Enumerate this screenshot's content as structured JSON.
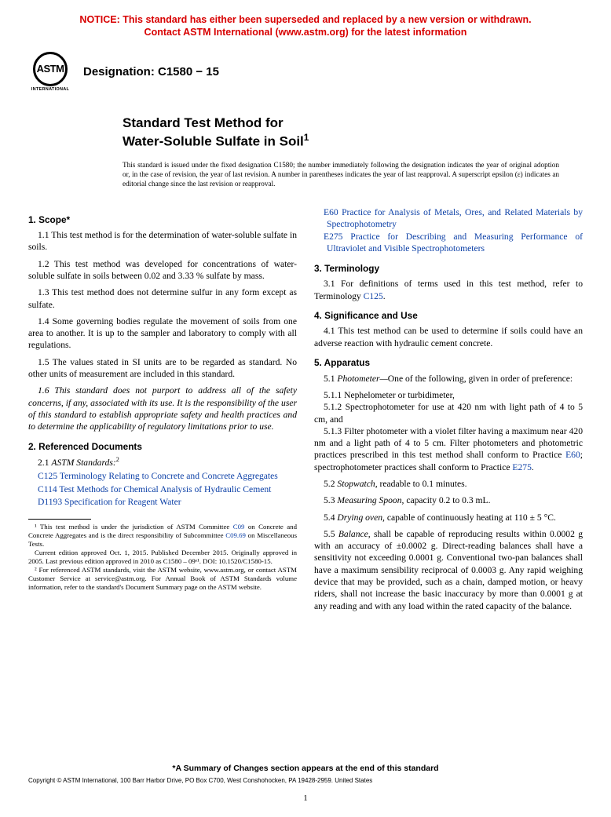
{
  "colors": {
    "notice": "#d80000",
    "link": "#0b3fa6",
    "text": "#000000",
    "background": "#ffffff"
  },
  "notice": {
    "line1": "NOTICE: This standard has either been superseded and replaced by a new version or withdrawn.",
    "line2": "Contact ASTM International (www.astm.org) for the latest information"
  },
  "logo": {
    "text": "ASTM",
    "subtext": "INTERNATIONAL"
  },
  "designation": "Designation: C1580 − 15",
  "title": {
    "lead": "Standard Test Method for",
    "main": "Water-Soluble Sulfate in Soil",
    "super": "1"
  },
  "issuance": "This standard is issued under the fixed designation C1580; the number immediately following the designation indicates the year of original adoption or, in the case of revision, the year of last revision. A number in parentheses indicates the year of last reapproval. A superscript epsilon (ε) indicates an editorial change since the last revision or reapproval.",
  "scope": {
    "heading": "1. Scope*",
    "p1": "1.1 This test method is for the determination of water-soluble sulfate in soils.",
    "p2": "1.2 This test method was developed for concentrations of water-soluble sulfate in soils between 0.02 and 3.33 % sulfate by mass.",
    "p3": "1.3 This test method does not determine sulfur in any form except as sulfate.",
    "p4": "1.4 Some governing bodies regulate the movement of soils from one area to another. It is up to the sampler and laboratory to comply with all regulations.",
    "p5": "1.5 The values stated in SI units are to be regarded as standard. No other units of measurement are included in this standard.",
    "p6": "1.6 This standard does not purport to address all of the safety concerns, if any, associated with its use. It is the responsibility of the user of this standard to establish appropriate safety and health practices and to determine the applicability of regulatory limitations prior to use."
  },
  "refs": {
    "heading": "2. Referenced Documents",
    "lead": "2.1 ",
    "lead_italic": "ASTM Standards:",
    "lead_sup": "2",
    "items": [
      {
        "code": "C125",
        "rest": " Terminology Relating to Concrete and Concrete Aggregates"
      },
      {
        "code": "C114",
        "rest": " Test Methods for Chemical Analysis of Hydraulic Cement"
      },
      {
        "code": "D1193",
        "rest": " Specification for Reagent Water"
      },
      {
        "code": "E60",
        "rest": " Practice for Analysis of Metals, Ores, and Related Materials by Spectrophotometry"
      },
      {
        "code": "E275",
        "rest": " Practice for Describing and Measuring Performance of Ultraviolet and Visible Spectrophotometers"
      }
    ]
  },
  "terminology": {
    "heading": "3. Terminology",
    "p1_a": "3.1 For definitions of terms used in this test method, refer to Terminology ",
    "p1_link": "C125",
    "p1_b": "."
  },
  "significance": {
    "heading": "4. Significance and Use",
    "p1": "4.1 This test method can be used to determine if soils could have an adverse reaction with hydraulic cement concrete."
  },
  "apparatus": {
    "heading": "5. Apparatus",
    "p51_a": "5.1 ",
    "p51_i": "Photometer—",
    "p51_b": "One of the following, given in order of preference:",
    "p511": "5.1.1 Nephelometer or turbidimeter,",
    "p512": "5.1.2 Spectrophotometer for use at 420 nm with light path of 4 to 5 cm, and",
    "p513_a": "5.1.3 Filter photometer with a violet filter having a maximum near 420 nm and a light path of 4 to 5 cm. Filter photometers and photometric practices prescribed in this test method shall conform to Practice ",
    "p513_l1": "E60",
    "p513_b": "; spectrophotometer practices shall conform to Practice ",
    "p513_l2": "E275",
    "p513_c": ".",
    "p52_a": "5.2 ",
    "p52_i": "Stopwatch,",
    "p52_b": " readable to 0.1 minutes.",
    "p53_a": "5.3 ",
    "p53_i": "Measuring Spoon,",
    "p53_b": " capacity 0.2 to 0.3 mL.",
    "p54_a": "5.4 ",
    "p54_i": "Drying oven,",
    "p54_b": " capable of continuously heating at 110 ± 5 °C.",
    "p55_a": "5.5 ",
    "p55_i": "Balance,",
    "p55_b": " shall be capable of reproducing results within 0.0002 g with an accuracy of ±0.0002 g. Direct-reading balances shall have a sensitivity not exceeding 0.0001 g. Conventional two-pan balances shall have a maximum sensibility reciprocal of 0.0003 g. Any rapid weighing device that may be provided, such as a chain, damped motion, or heavy riders, shall not increase the basic inaccuracy by more than 0.0001 g at any reading and with any load within the rated capacity of the balance."
  },
  "footnotes": {
    "fn1_a": "¹ This test method is under the jurisdiction of ASTM Committee ",
    "fn1_l1": "C09",
    "fn1_b": " on Concrete and Concrete Aggregates and is the direct responsibility of Subcommittee ",
    "fn1_l2": "C09.69",
    "fn1_c": " on Miscellaneous Tests.",
    "fn1_p2": "Current edition approved Oct. 1, 2015. Published December 2015. Originally approved in 2005. Last previous edition approved in 2010 as C1580 – 09ᵉ¹. DOI: 10.1520/C1580-15.",
    "fn2": "² For referenced ASTM standards, visit the ASTM website, www.astm.org, or contact ASTM Customer Service at service@astm.org. For Annual Book of ASTM Standards volume information, refer to the standard's Document Summary page on the ASTM website."
  },
  "footer": {
    "changes": "*A Summary of Changes section appears at the end of this standard",
    "copyright": "Copyright © ASTM International, 100 Barr Harbor Drive, PO Box C700, West Conshohocken, PA 19428-2959. United States",
    "page": "1"
  }
}
